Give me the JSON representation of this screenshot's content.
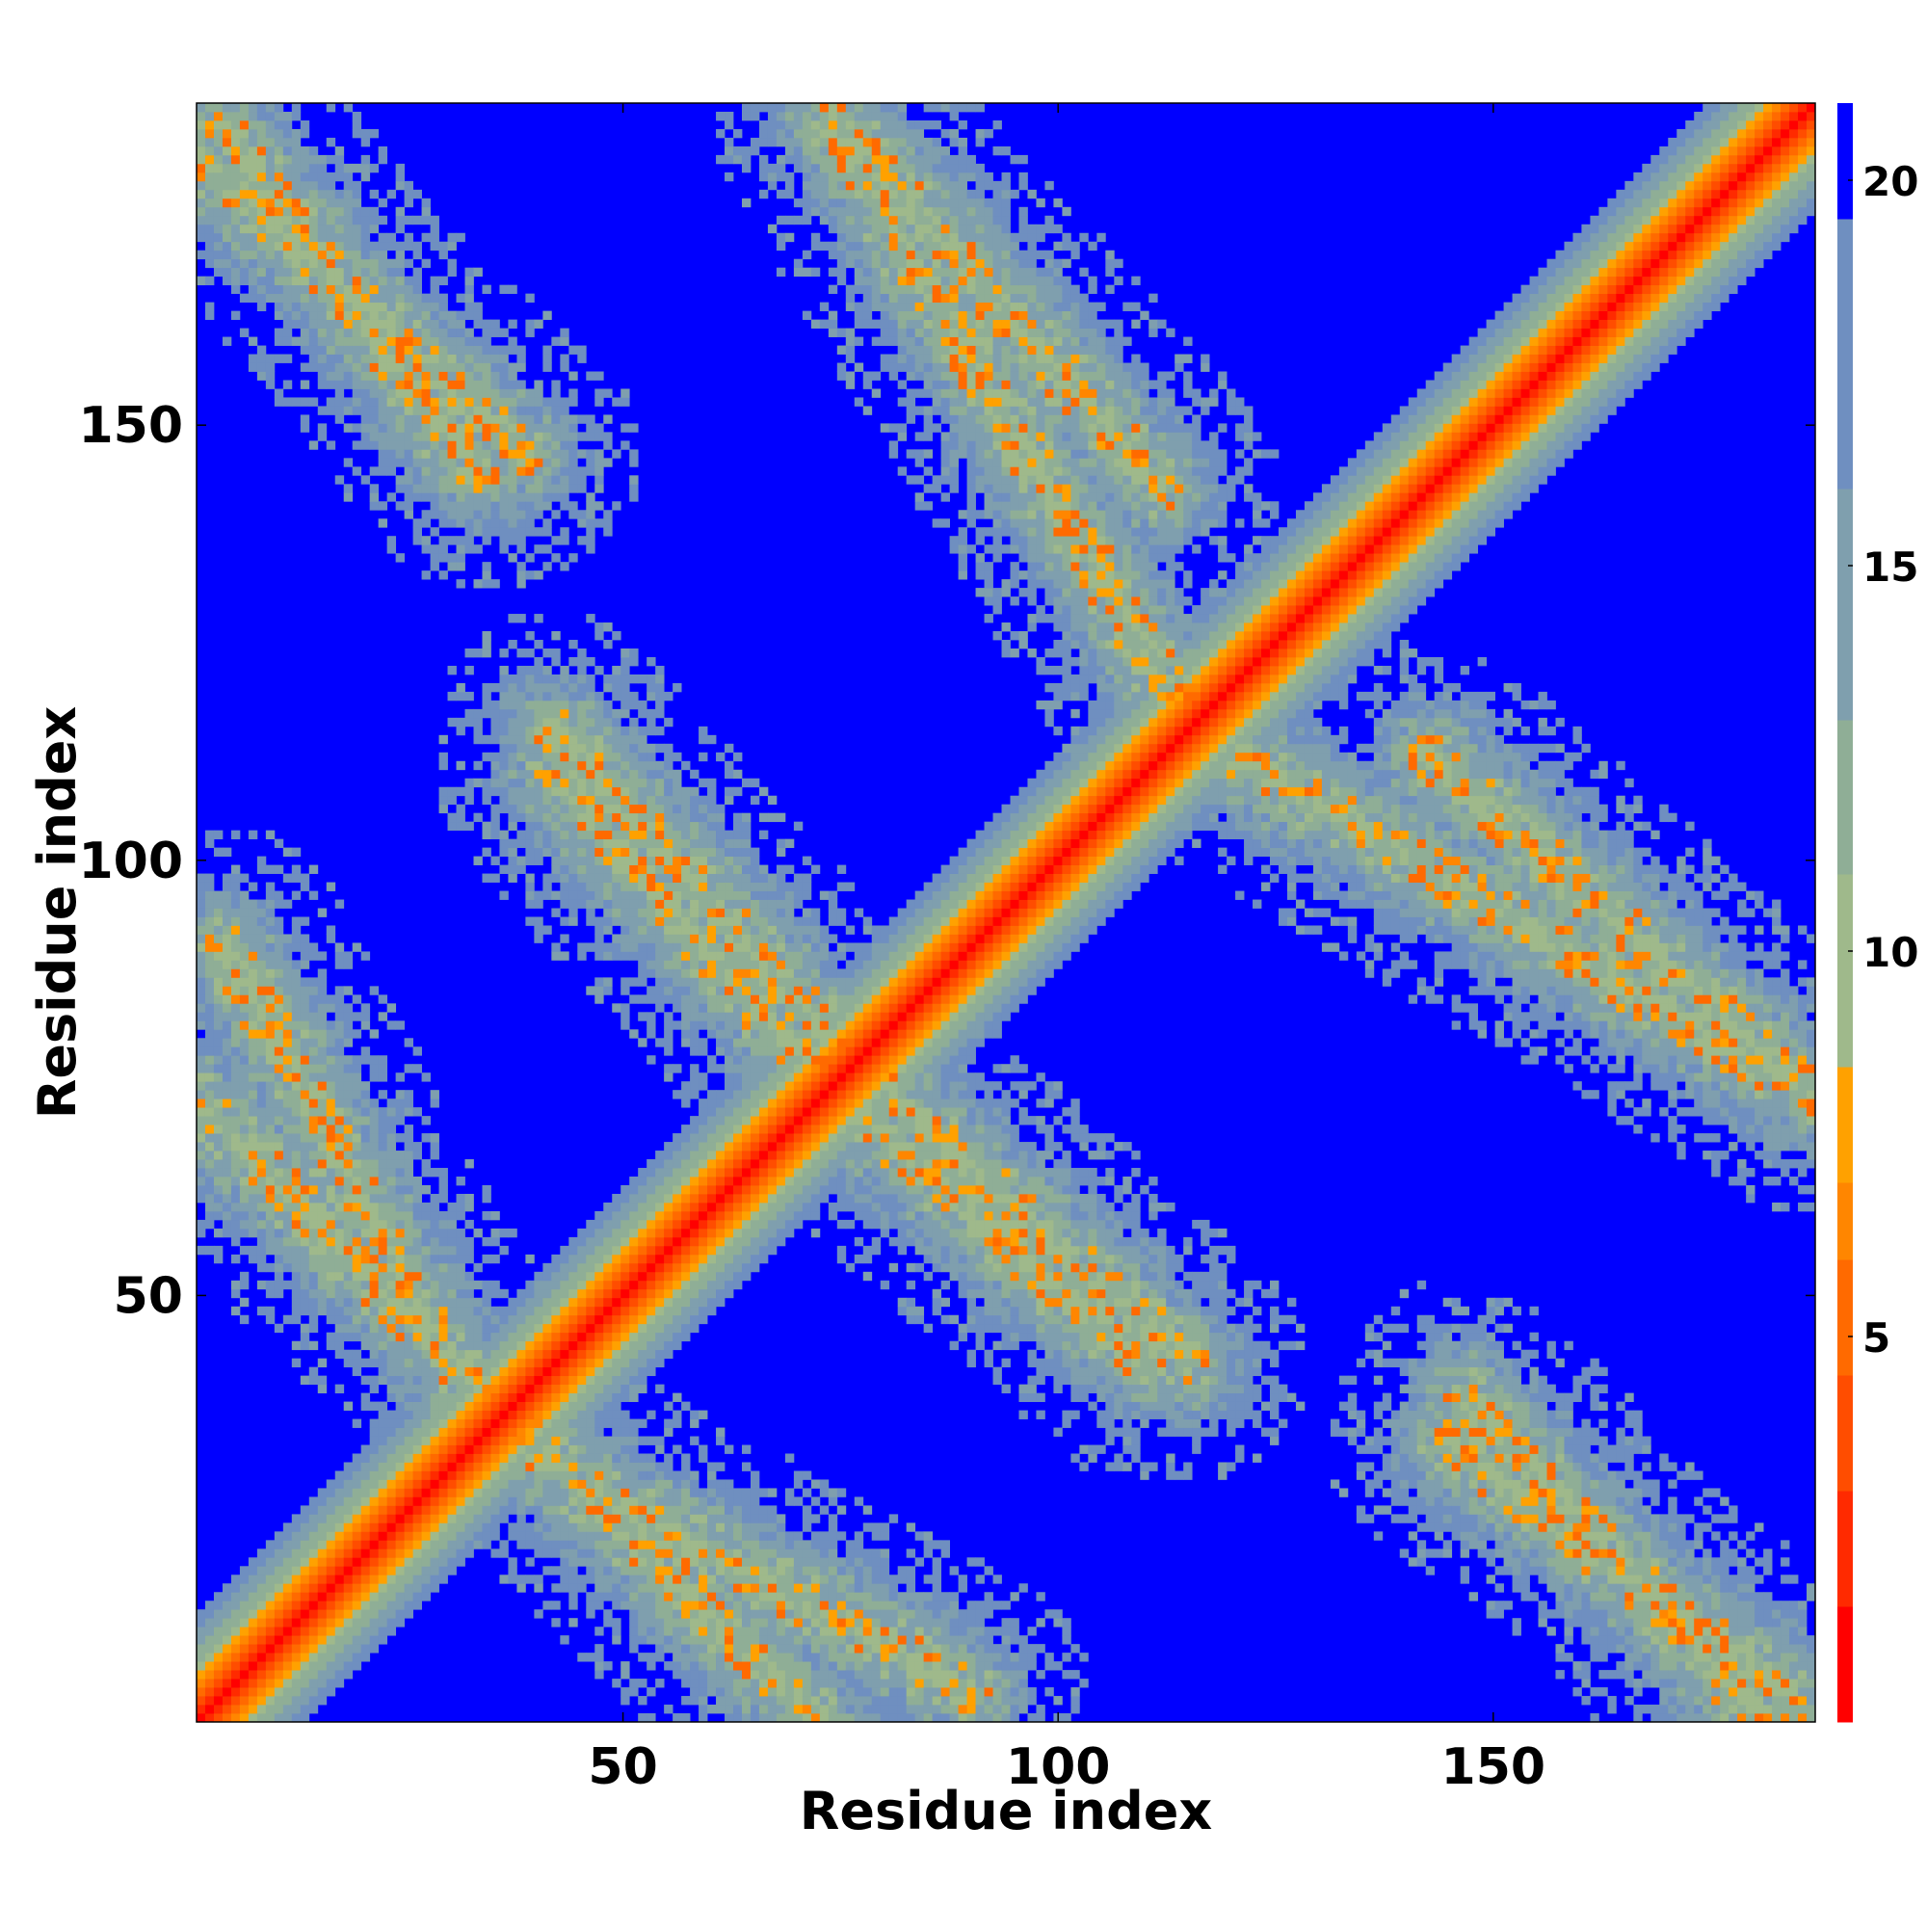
{
  "chart_data": {
    "type": "heatmap",
    "title": "",
    "xlabel": "Residue index",
    "ylabel": "Residue index",
    "n_residues": 187,
    "xlim": [
      1,
      187
    ],
    "ylim": [
      1,
      187
    ],
    "x_ticks": [
      50,
      100,
      150
    ],
    "y_ticks": [
      50,
      100,
      150
    ],
    "colorbar": {
      "ticks": [
        5,
        10,
        15,
        20
      ],
      "range": [
        0,
        21
      ],
      "colors": [
        "#ff0000",
        "#ff2a00",
        "#ff4d00",
        "#ff6a00",
        "#ff8600",
        "#ffa100",
        "#9fb98b",
        "#8fae96",
        "#7f9fae",
        "#6f8fc0",
        "#0000ff"
      ],
      "thresholds": [
        1.5,
        3,
        4.5,
        6,
        7,
        8.5,
        11,
        13,
        16,
        19.5
      ]
    },
    "features": {
      "diagonal": {
        "description": "main diagonal band",
        "start": 1,
        "end": 187
      },
      "anti_diagonal_bands": [
        {
          "x": [
            1,
            38
          ],
          "y": [
            181,
            147
          ]
        },
        {
          "x": [
            73,
            112
          ],
          "y": [
            187,
            143
          ]
        },
        {
          "x": [
            42,
            75
          ],
          "y": [
            110,
            72
          ]
        },
        {
          "x": [
            1,
            42
          ],
          "y": [
            72,
            30
          ]
        },
        {
          "x": [
            45,
            90
          ],
          "y": [
            28,
            4
          ]
        },
        {
          "x": [
            78,
            115
          ],
          "y": [
            75,
            42
          ]
        },
        {
          "x": [
            116,
            185
          ],
          "y": [
            115,
            74
          ]
        },
        {
          "x": [
            145,
            185
          ],
          "y": [
            33,
            3
          ]
        }
      ]
    }
  }
}
